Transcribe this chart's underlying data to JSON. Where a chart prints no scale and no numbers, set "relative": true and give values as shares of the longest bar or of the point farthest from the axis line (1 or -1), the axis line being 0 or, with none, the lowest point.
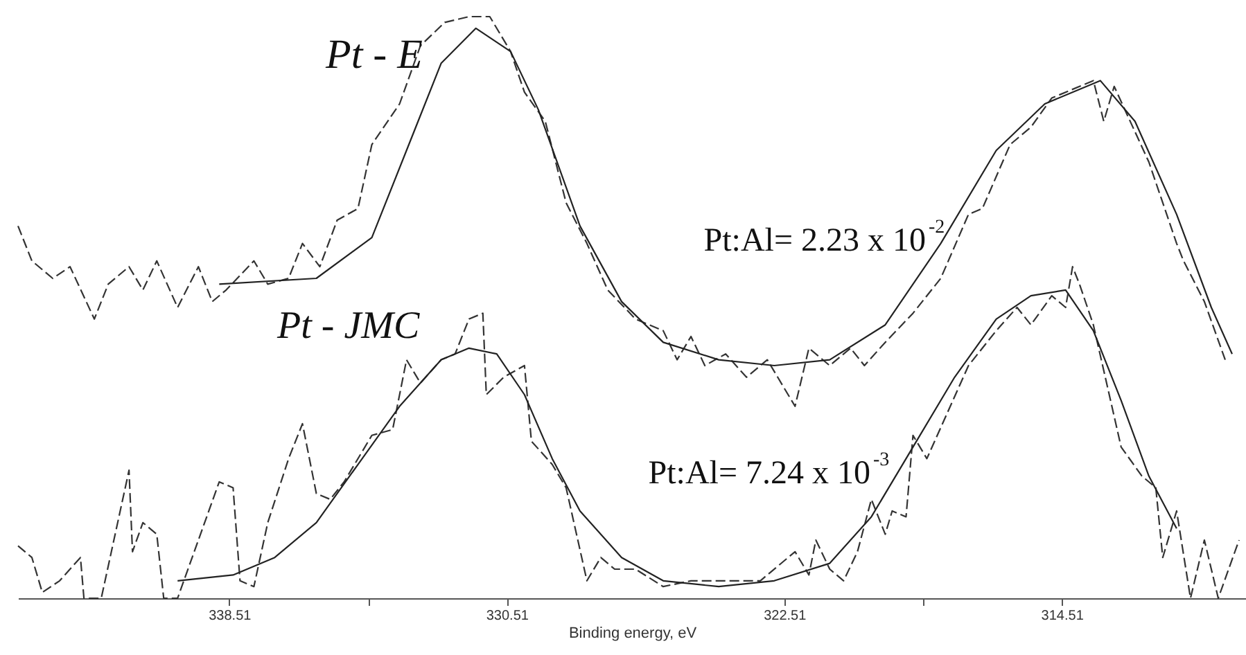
{
  "chart_data": {
    "type": "line",
    "relative": true,
    "xlabel": "Binding energy, eV",
    "xlim": [
      344.6,
      309.2
    ],
    "xticks": [
      338.51,
      {
        "value": 334.51,
        "label": null
      },
      330.51,
      322.51,
      {
        "value": 318.51,
        "label": null
      },
      314.51
    ],
    "grid": false,
    "marker": "none",
    "annotations": [
      "Pt - E",
      "Pt - JMC",
      "Pt:Al= 2.23 x 10$^{-2}$",
      "Pt:Al= 7.24 x 10$^{-3}$"
    ],
    "series": [
      {
        "color": "#333333",
        "line_style": "dashed",
        "x": [
          344.6,
          344.2,
          343.6,
          343.1,
          342.4,
          342.0,
          341.4,
          341.0,
          340.6,
          340.0,
          339.4,
          339.0,
          338.6,
          337.8,
          337.4,
          336.8,
          336.4,
          335.9,
          335.4,
          334.8,
          334.4,
          333.6,
          333.0,
          332.3,
          331.6,
          331.0,
          330.4,
          330.0,
          329.4,
          328.8,
          328.2,
          327.6,
          326.8,
          326.0,
          325.6,
          325.2,
          324.8,
          324.2,
          323.6,
          323.0,
          322.2,
          321.8,
          321.2,
          320.6,
          320.2,
          319.6,
          318.8,
          318.0,
          317.2,
          316.8,
          316.0,
          315.4,
          314.8,
          313.6,
          313.3,
          313.0,
          312.0,
          311.2,
          311.0,
          310.4,
          309.8
        ],
        "values": [
          0.64,
          0.58,
          0.55,
          0.57,
          0.48,
          0.54,
          0.57,
          0.53,
          0.58,
          0.5,
          0.57,
          0.51,
          0.53,
          0.58,
          0.54,
          0.55,
          0.61,
          0.57,
          0.65,
          0.67,
          0.78,
          0.85,
          0.95,
          0.99,
          1.0,
          1.0,
          0.94,
          0.87,
          0.82,
          0.68,
          0.61,
          0.53,
          0.48,
          0.46,
          0.41,
          0.45,
          0.4,
          0.42,
          0.38,
          0.41,
          0.33,
          0.43,
          0.4,
          0.43,
          0.4,
          0.44,
          0.49,
          0.55,
          0.66,
          0.67,
          0.78,
          0.81,
          0.86,
          0.89,
          0.82,
          0.88,
          0.75,
          0.61,
          0.58,
          0.51,
          0.41
        ]
      },
      {
        "color": "#222222",
        "line_style": "solid",
        "x": [
          338.8,
          336.0,
          334.4,
          333.2,
          332.4,
          331.4,
          330.4,
          329.6,
          328.4,
          327.2,
          326.0,
          324.4,
          322.8,
          321.2,
          319.6,
          318.0,
          316.4,
          315.0,
          313.4,
          312.4,
          311.2,
          310.2,
          309.6
        ],
        "values": [
          0.54,
          0.55,
          0.62,
          0.8,
          0.92,
          0.98,
          0.94,
          0.84,
          0.64,
          0.51,
          0.44,
          0.41,
          0.4,
          0.41,
          0.47,
          0.61,
          0.77,
          0.85,
          0.89,
          0.82,
          0.66,
          0.5,
          0.42
        ]
      },
      {
        "color": "#333333",
        "line_style": "dashed",
        "x": [
          344.6,
          344.2,
          343.9,
          343.4,
          342.8,
          342.7,
          342.2,
          341.4,
          341.3,
          341.0,
          340.6,
          340.4,
          340.0,
          338.8,
          338.4,
          338.2,
          337.8,
          337.4,
          336.8,
          336.4,
          336.0,
          335.6,
          335.2,
          334.4,
          333.8,
          333.4,
          333.0,
          332.4,
          332.0,
          331.6,
          331.2,
          331.1,
          330.6,
          330.0,
          329.8,
          329.2,
          328.8,
          328.2,
          327.8,
          327.4,
          326.8,
          326.0,
          325.2,
          324.4,
          323.2,
          322.2,
          321.8,
          321.6,
          321.2,
          320.8,
          320.4,
          320.0,
          319.6,
          319.4,
          319.0,
          318.8,
          318.4,
          317.8,
          317.2,
          316.4,
          315.8,
          315.4,
          314.8,
          314.4,
          314.2,
          314.0,
          313.6,
          312.8,
          312.2,
          311.8,
          311.6,
          311.2,
          310.8,
          310.4,
          310.0,
          309.4
        ],
        "values": [
          0.09,
          0.07,
          0.01,
          0.03,
          0.07,
          0.0,
          0.0,
          0.22,
          0.08,
          0.13,
          0.11,
          0.0,
          0.0,
          0.2,
          0.19,
          0.03,
          0.02,
          0.13,
          0.24,
          0.3,
          0.18,
          0.17,
          0.2,
          0.28,
          0.29,
          0.41,
          0.37,
          0.41,
          0.42,
          0.48,
          0.49,
          0.35,
          0.38,
          0.4,
          0.27,
          0.23,
          0.19,
          0.03,
          0.07,
          0.05,
          0.05,
          0.02,
          0.03,
          0.03,
          0.03,
          0.08,
          0.04,
          0.1,
          0.05,
          0.03,
          0.08,
          0.17,
          0.11,
          0.15,
          0.14,
          0.28,
          0.24,
          0.32,
          0.4,
          0.46,
          0.5,
          0.47,
          0.52,
          0.5,
          0.57,
          0.54,
          0.47,
          0.26,
          0.21,
          0.19,
          0.07,
          0.15,
          0.0,
          0.1,
          0.0,
          0.1
        ]
      },
      {
        "color": "#222222",
        "line_style": "solid",
        "x": [
          340.0,
          338.4,
          337.2,
          336.0,
          334.8,
          333.6,
          332.4,
          331.6,
          330.8,
          330.0,
          329.2,
          328.4,
          327.2,
          326.0,
          324.4,
          322.8,
          321.2,
          320.0,
          318.8,
          317.6,
          316.4,
          315.4,
          314.4,
          313.6,
          312.8,
          312.0,
          311.2
        ],
        "values": [
          0.03,
          0.04,
          0.07,
          0.13,
          0.23,
          0.33,
          0.41,
          0.43,
          0.42,
          0.35,
          0.24,
          0.15,
          0.07,
          0.03,
          0.02,
          0.03,
          0.06,
          0.14,
          0.26,
          0.38,
          0.48,
          0.52,
          0.53,
          0.46,
          0.34,
          0.21,
          0.12
        ]
      }
    ]
  }
}
